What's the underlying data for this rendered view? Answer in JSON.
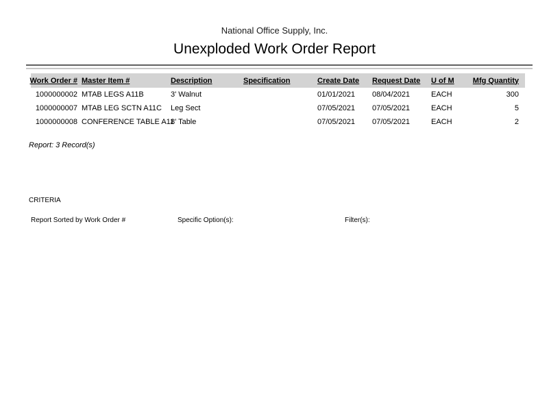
{
  "header": {
    "company": "National Office Supply, Inc.",
    "title": "Unexploded Work Order Report"
  },
  "table": {
    "columns": [
      {
        "key": "work_order",
        "label": "Work Order #"
      },
      {
        "key": "master_item",
        "label": "Master Item #"
      },
      {
        "key": "description",
        "label": "Description"
      },
      {
        "key": "specification",
        "label": "Specification"
      },
      {
        "key": "create_date",
        "label": "Create Date"
      },
      {
        "key": "request_date",
        "label": "Request Date"
      },
      {
        "key": "uom",
        "label": "U of M"
      },
      {
        "key": "mfg_quantity",
        "label": "Mfg Quantity"
      }
    ],
    "rows": [
      {
        "work_order": "1000000002",
        "master_item": "MTAB LEGS A11B",
        "description": "3' Walnut",
        "specification": "",
        "create_date": "01/01/2021",
        "request_date": "08/04/2021",
        "uom": "EACH",
        "mfg_quantity": "300"
      },
      {
        "work_order": "1000000007",
        "master_item": "MTAB LEG SCTN A11C",
        "description": "Leg Sect",
        "specification": "",
        "create_date": "07/05/2021",
        "request_date": "07/05/2021",
        "uom": "EACH",
        "mfg_quantity": "5"
      },
      {
        "work_order": "1000000008",
        "master_item": "CONFERENCE TABLE A11",
        "description": "8' Table",
        "specification": "",
        "create_date": "07/05/2021",
        "request_date": "07/05/2021",
        "uom": "EACH",
        "mfg_quantity": "2"
      }
    ]
  },
  "summary": {
    "record_count_label": "Report: 3 Record(s)"
  },
  "criteria": {
    "section_label": "CRITERIA",
    "sorted_by": "Report Sorted by Work Order #",
    "specific_options_label": "Specific Option(s):",
    "filters_label": "Filter(s):"
  },
  "colors": {
    "header_band": "#d3d3d3",
    "rule_dark": "#606060",
    "rule_light": "#c6c6c6"
  }
}
